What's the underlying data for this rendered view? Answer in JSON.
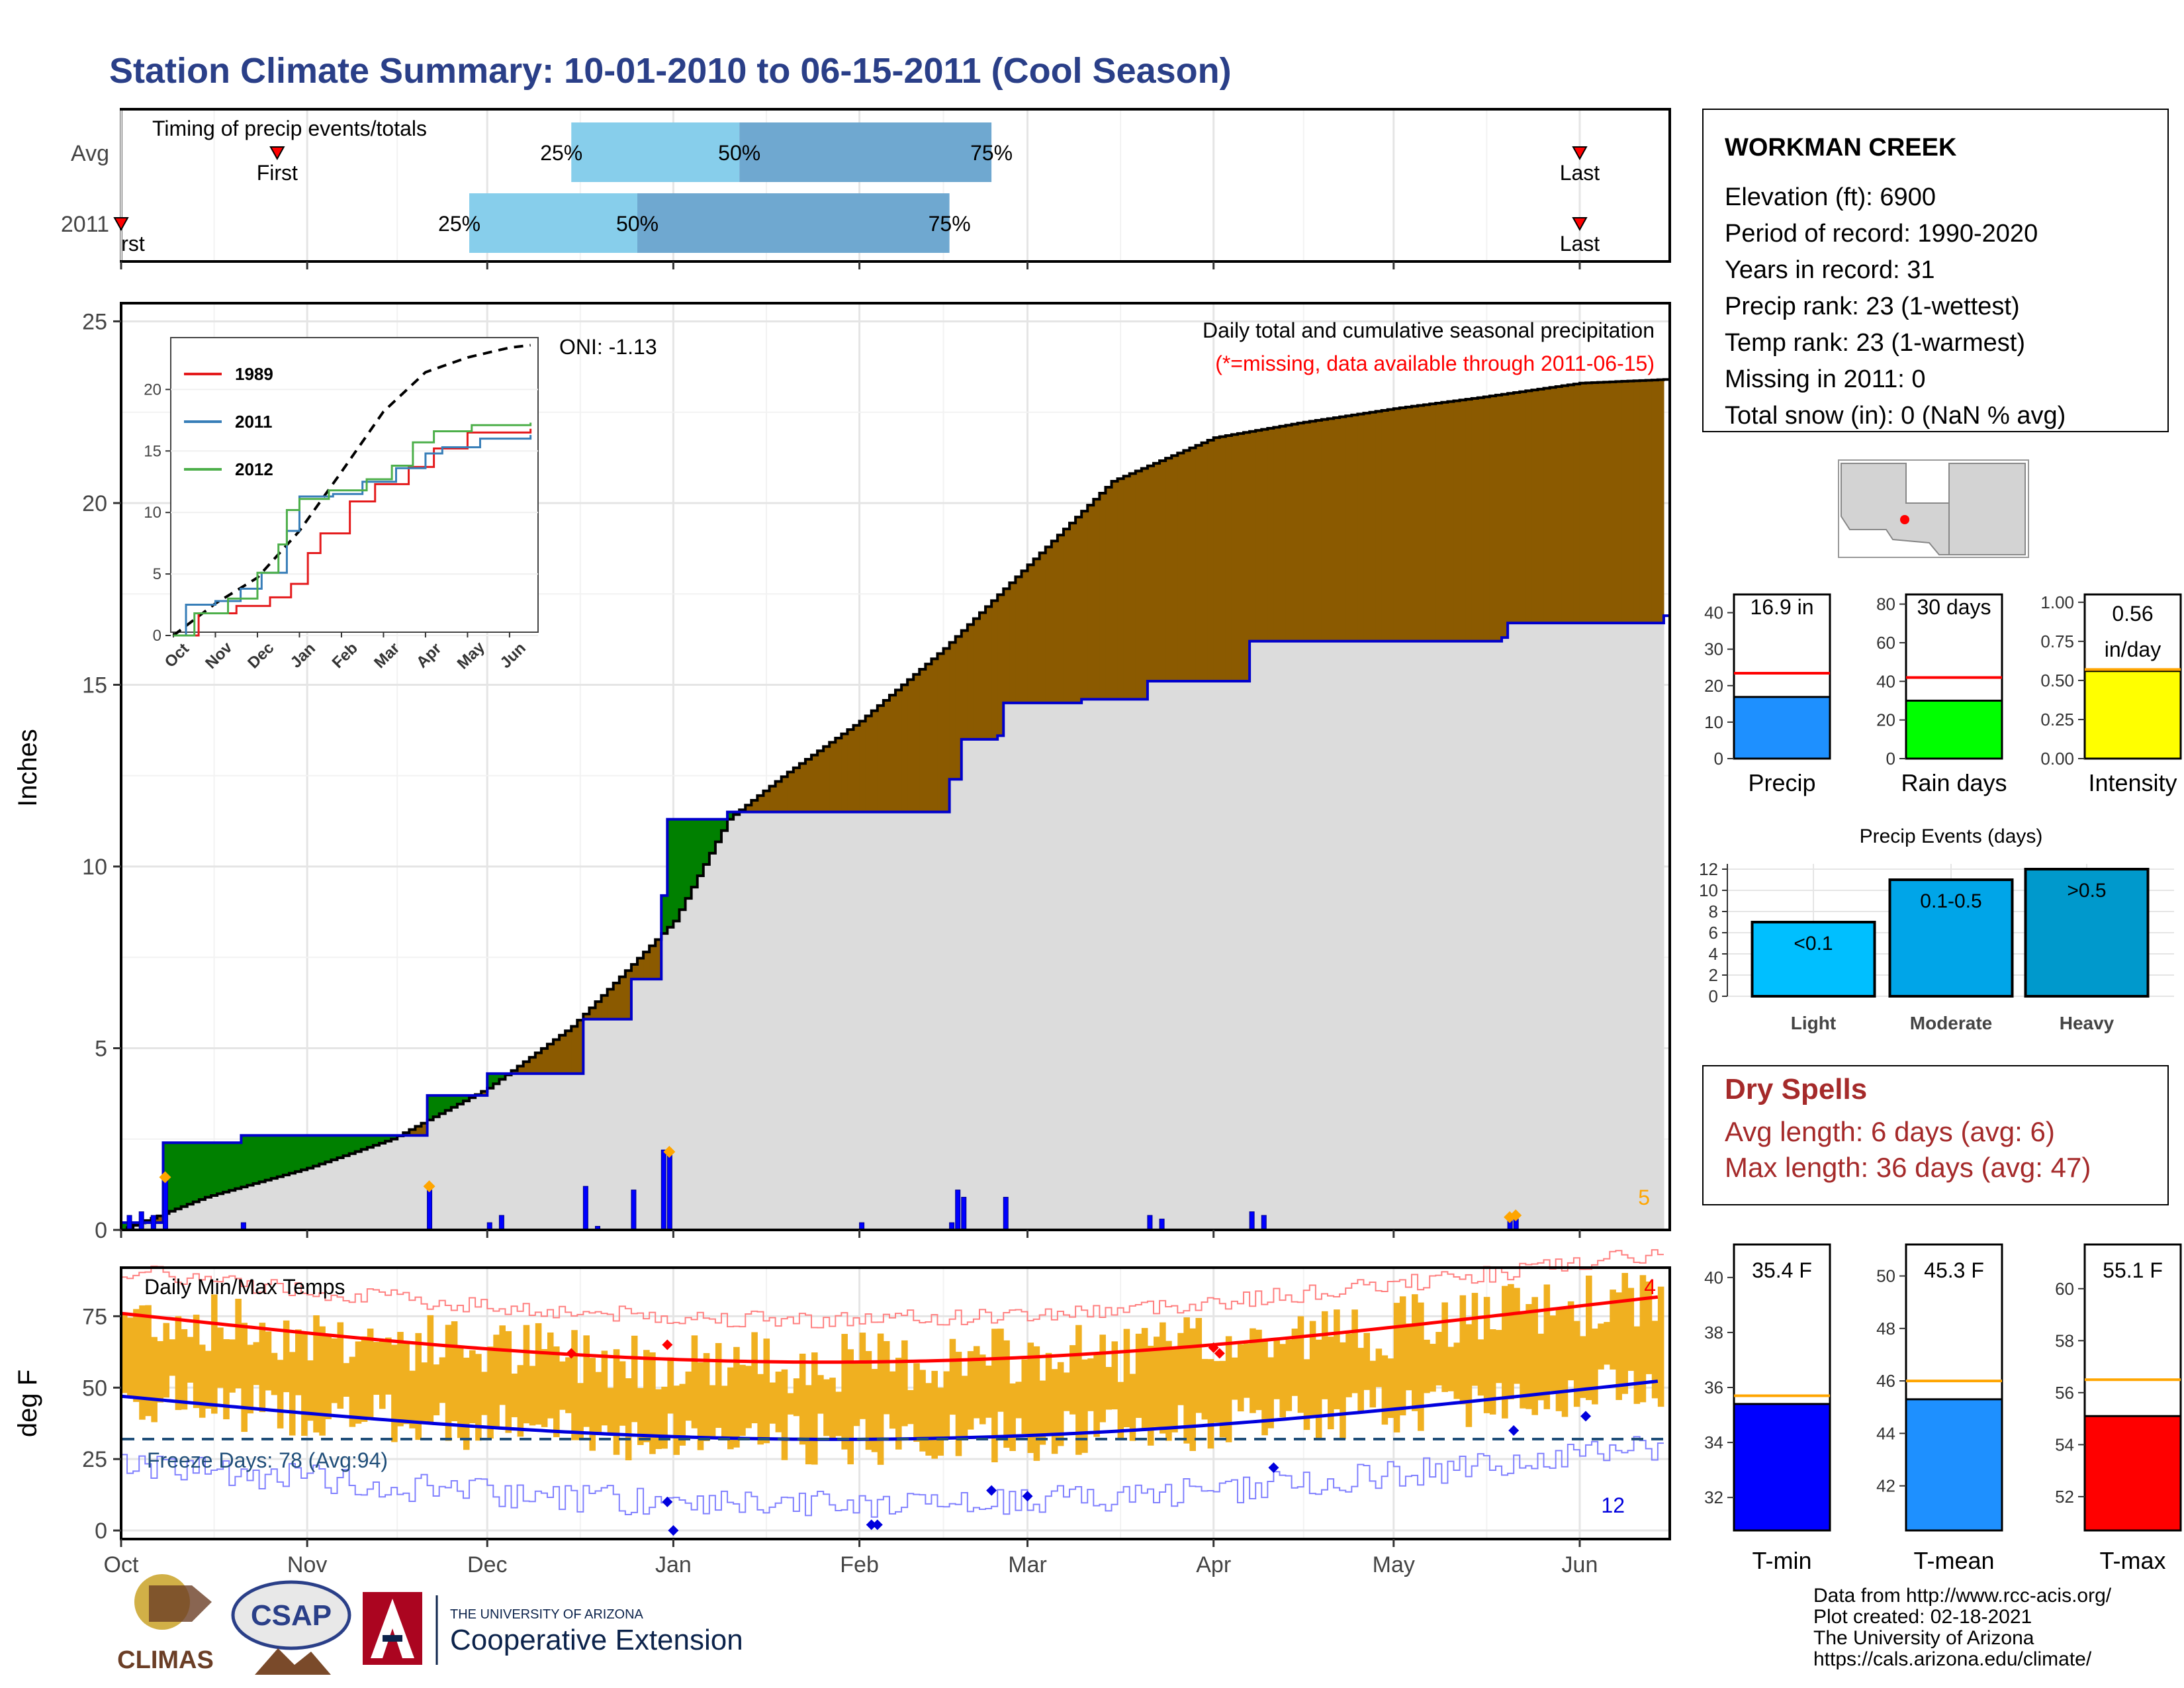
{
  "title": "Station Climate Summary: 10-01-2010 to 06-15-2011 (Cool Season)",
  "colors": {
    "title": "#2a3f88",
    "precip_above": "#8b5a00",
    "precip_below": "#008000",
    "cum_fill": "#dcdcdc",
    "year_line": "#0000cc",
    "bars": "#0000ff",
    "temp_bar": "#f0b020",
    "tmax_avg": "#ff0000",
    "tmin_avg": "#0000dd",
    "orange": "#ffa500"
  },
  "timing": {
    "label": "Timing of precip events/totals",
    "rows": [
      {
        "label": "Avg",
        "first": "2010-10-27",
        "last": "2011-06-01",
        "q25": "2010-12-15",
        "q50": "2011-01-12",
        "q75": "2011-02-23"
      },
      {
        "label": "2011",
        "first": "2010-10-01",
        "last": "2011-06-01",
        "q25": "2010-11-28",
        "q50": "2010-12-26",
        "q75": "2011-02-16"
      }
    ],
    "first_label": "First",
    "first_label_cut": "rst",
    "last_label": "Last",
    "q_labels": [
      "25%",
      "50%",
      "75%"
    ]
  },
  "precip": {
    "ylabel": "Inches",
    "subtitle": "Daily total and cumulative seasonal precipitation",
    "missing_note": "(*=missing, data available through 2011-06-15)",
    "oni": "ONI: -1.13",
    "corner_count": "5",
    "y_ticks": [
      "0",
      "5",
      "10",
      "15",
      "20",
      "25"
    ],
    "x_ticks": [
      "Oct",
      "Nov",
      "Dec",
      "Jan",
      "Feb",
      "Mar",
      "Apr",
      "May",
      "Jun"
    ]
  },
  "inset": {
    "series": [
      {
        "name": "1989",
        "color": "#e41a1c"
      },
      {
        "name": "2011",
        "color": "#377eb8"
      },
      {
        "name": "2012",
        "color": "#4daf4a"
      }
    ],
    "y_ticks": [
      "0",
      "5",
      "10",
      "15",
      "20"
    ],
    "x_ticks": [
      "Oct",
      "Nov",
      "Dec",
      "Jan",
      "Feb",
      "Mar",
      "Apr",
      "May",
      "Jun"
    ]
  },
  "temps": {
    "label": "Daily Min/Max Temps",
    "ylabel": "deg F",
    "freeze": "Freeze Days: 78 (Avg:94)",
    "hot_count": "4",
    "cold_count": "12",
    "y_ticks": [
      "0",
      "25",
      "50",
      "75"
    ],
    "x_ticks": [
      "Oct",
      "Nov",
      "Dec",
      "Jan",
      "Feb",
      "Mar",
      "Apr",
      "May",
      "Jun"
    ]
  },
  "station": {
    "name": "WORKMAN CREEK",
    "lines": [
      "Elevation (ft): 6900",
      "Period of record: 1990-2020",
      "Years in record: 31",
      "Precip rank: 23 (1-wettest)",
      "Temp rank: 23 (1-warmest)",
      "Missing in 2011: 0",
      "Total snow (in): 0 (NaN % avg)"
    ]
  },
  "mini_bars": [
    {
      "label": "Precip",
      "value_text": "16.9 in",
      "value": 16.9,
      "avg": 23.4,
      "ymax": 45,
      "ticks": [
        "0",
        "10",
        "20",
        "30",
        "40"
      ],
      "color": "#1e90ff"
    },
    {
      "label": "Rain days",
      "value_text": "30 days",
      "value": 30,
      "avg": 42,
      "ymax": 85,
      "ticks": [
        "0",
        "20",
        "40",
        "60",
        "80"
      ],
      "color": "#00ff00"
    },
    {
      "label": "Intensity",
      "value_text": "0.56",
      "value_text2": "in/day",
      "value": 0.56,
      "avg": 0.57,
      "ymax": 1.05,
      "ticks": [
        "0.00",
        "0.25",
        "0.50",
        "0.75",
        "1.00"
      ],
      "color": "#ffff00"
    }
  ],
  "events": {
    "title": "Precip Events (days)",
    "ticks": [
      "0",
      "2",
      "4",
      "6",
      "8",
      "10",
      "12"
    ],
    "bars": [
      {
        "cat": "Light",
        "label": "<0.1",
        "value": 7,
        "color": "#00bfff"
      },
      {
        "cat": "Moderate",
        "label": "0.1-0.5",
        "value": 11,
        "color": "#00a5e8"
      },
      {
        "cat": "Heavy",
        "label": ">0.5",
        "value": 12,
        "color": "#0099cc"
      }
    ]
  },
  "dry": {
    "title": "Dry Spells",
    "lines": [
      "Avg length: 6 days (avg: 6)",
      "Max length: 36 days (avg: 47)"
    ]
  },
  "temp_bars": [
    {
      "label": "T-min",
      "value_text": "35.4 F",
      "value": 35.4,
      "avg": 35.7,
      "ymin": 30.8,
      "ymax": 41.2,
      "ticks": [
        "32",
        "34",
        "36",
        "38",
        "40"
      ],
      "color": "#0000ff"
    },
    {
      "label": "T-mean",
      "value_text": "45.3 F",
      "value": 45.3,
      "avg": 46.0,
      "ymin": 40.3,
      "ymax": 51.2,
      "ticks": [
        "42",
        "44",
        "46",
        "48",
        "50"
      ],
      "color": "#1e90ff"
    },
    {
      "label": "T-max",
      "value_text": "55.1 F",
      "value": 55.1,
      "avg": 56.5,
      "ymin": 50.7,
      "ymax": 61.7,
      "ticks": [
        "52",
        "54",
        "56",
        "58",
        "60"
      ],
      "color": "#ff0000"
    }
  ],
  "footer": {
    "lines": [
      "Data from http://www.rcc-acis.org/",
      "Plot created: 02-18-2021",
      "The University of Arizona",
      "https://cals.arizona.edu/climate/"
    ],
    "climas": "CLIMAS",
    "csap": "CSAP",
    "ua_small": "THE UNIVERSITY OF ARIZONA",
    "ua_big": "Cooperative Extension"
  },
  "chart_data": {
    "type": "area",
    "title": "Daily total and cumulative seasonal precipitation",
    "ylabel": "Inches",
    "ylim": [
      0,
      25.5
    ],
    "cumulative_2011": [
      {
        "date": "2010-10-01",
        "value": 0.2
      },
      {
        "date": "2010-10-08",
        "value": 2.4
      },
      {
        "date": "2010-10-20",
        "value": 2.4
      },
      {
        "date": "2010-10-21",
        "value": 2.6
      },
      {
        "date": "2010-11-20",
        "value": 2.6
      },
      {
        "date": "2010-11-21",
        "value": 3.7
      },
      {
        "date": "2010-11-30",
        "value": 3.7
      },
      {
        "date": "2010-12-01",
        "value": 4.3
      },
      {
        "date": "2010-12-16",
        "value": 4.3
      },
      {
        "date": "2010-12-17",
        "value": 5.8
      },
      {
        "date": "2010-12-24",
        "value": 5.8
      },
      {
        "date": "2010-12-25",
        "value": 6.9
      },
      {
        "date": "2010-12-29",
        "value": 6.9
      },
      {
        "date": "2010-12-30",
        "value": 9.2
      },
      {
        "date": "2010-12-31",
        "value": 11.3
      },
      {
        "date": "2011-01-10",
        "value": 11.5
      },
      {
        "date": "2011-02-04",
        "value": 11.5
      },
      {
        "date": "2011-02-15",
        "value": 11.5
      },
      {
        "date": "2011-02-16",
        "value": 12.4
      },
      {
        "date": "2011-02-18",
        "value": 13.5
      },
      {
        "date": "2011-02-24",
        "value": 13.6
      },
      {
        "date": "2011-02-25",
        "value": 14.5
      },
      {
        "date": "2011-03-10",
        "value": 14.6
      },
      {
        "date": "2011-03-20",
        "value": 14.6
      },
      {
        "date": "2011-03-21",
        "value": 15.1
      },
      {
        "date": "2011-04-06",
        "value": 15.1
      },
      {
        "date": "2011-04-07",
        "value": 16.2
      },
      {
        "date": "2011-05-19",
        "value": 16.3
      },
      {
        "date": "2011-05-20",
        "value": 16.7
      },
      {
        "date": "2011-06-15",
        "value": 16.9
      }
    ],
    "cumulative_avg": [
      {
        "date": "2010-10-01",
        "value": 0.0
      },
      {
        "date": "2010-10-15",
        "value": 0.9
      },
      {
        "date": "2010-11-01",
        "value": 1.7
      },
      {
        "date": "2010-11-15",
        "value": 2.5
      },
      {
        "date": "2010-12-01",
        "value": 3.9
      },
      {
        "date": "2010-12-15",
        "value": 5.6
      },
      {
        "date": "2011-01-01",
        "value": 8.5
      },
      {
        "date": "2011-01-10",
        "value": 11.3
      },
      {
        "date": "2011-01-20",
        "value": 12.6
      },
      {
        "date": "2011-02-01",
        "value": 14.0
      },
      {
        "date": "2011-02-15",
        "value": 16.0
      },
      {
        "date": "2011-03-01",
        "value": 18.3
      },
      {
        "date": "2011-03-15",
        "value": 20.6
      },
      {
        "date": "2011-04-01",
        "value": 21.8
      },
      {
        "date": "2011-04-15",
        "value": 22.2
      },
      {
        "date": "2011-05-01",
        "value": 22.6
      },
      {
        "date": "2011-05-15",
        "value": 22.9
      },
      {
        "date": "2011-06-01",
        "value": 23.3
      },
      {
        "date": "2011-06-15",
        "value": 23.4
      }
    ],
    "daily_precip": [
      {
        "date": "2010-10-02",
        "value": 0.4
      },
      {
        "date": "2010-10-04",
        "value": 0.5
      },
      {
        "date": "2010-10-06",
        "value": 0.4
      },
      {
        "date": "2010-10-08",
        "value": 1.4
      },
      {
        "date": "2010-10-21",
        "value": 0.2
      },
      {
        "date": "2010-11-21",
        "value": 1.1
      },
      {
        "date": "2010-12-01",
        "value": 0.2
      },
      {
        "date": "2010-12-03",
        "value": 0.4
      },
      {
        "date": "2010-12-17",
        "value": 1.2
      },
      {
        "date": "2010-12-19",
        "value": 0.1
      },
      {
        "date": "2010-12-25",
        "value": 1.1
      },
      {
        "date": "2010-12-30",
        "value": 2.2
      },
      {
        "date": "2010-12-31",
        "value": 2.1
      },
      {
        "date": "2011-02-01",
        "value": 0.2
      },
      {
        "date": "2011-02-16",
        "value": 0.2
      },
      {
        "date": "2011-02-17",
        "value": 1.1
      },
      {
        "date": "2011-02-18",
        "value": 0.9
      },
      {
        "date": "2011-02-25",
        "value": 0.9
      },
      {
        "date": "2011-03-21",
        "value": 0.4
      },
      {
        "date": "2011-03-23",
        "value": 0.3
      },
      {
        "date": "2011-04-07",
        "value": 0.5
      },
      {
        "date": "2011-04-09",
        "value": 0.4
      },
      {
        "date": "2011-05-20",
        "value": 0.3
      },
      {
        "date": "2011-05-21",
        "value": 0.3
      }
    ],
    "inset": {
      "ylim": [
        0,
        24
      ],
      "avg": [
        [
          0,
          0
        ],
        [
          1,
          2.6
        ],
        [
          2,
          4.7
        ],
        [
          3,
          8.5
        ],
        [
          4,
          13.3
        ],
        [
          5,
          18.2
        ],
        [
          6,
          21.4
        ],
        [
          7,
          22.6
        ],
        [
          8,
          23.4
        ],
        [
          8.5,
          23.6
        ]
      ],
      "series": [
        {
          "name": "1989",
          "points": [
            [
              0,
              0
            ],
            [
              0.6,
              1.8
            ],
            [
              1.5,
              2.4
            ],
            [
              2.3,
              3.1
            ],
            [
              2.8,
              4.2
            ],
            [
              3.2,
              6.7
            ],
            [
              3.5,
              8.3
            ],
            [
              4.2,
              10.9
            ],
            [
              4.8,
              12.3
            ],
            [
              5.6,
              13.7
            ],
            [
              6.2,
              15.2
            ],
            [
              7.0,
              16.5
            ],
            [
              8.5,
              16.8
            ]
          ]
        },
        {
          "name": "2011",
          "points": [
            [
              0,
              0
            ],
            [
              0.3,
              2.5
            ],
            [
              1,
              2.8
            ],
            [
              1.6,
              3.8
            ],
            [
              2.1,
              5.1
            ],
            [
              2.7,
              8.5
            ],
            [
              3.0,
              11.3
            ],
            [
              3.8,
              11.5
            ],
            [
              4.5,
              12.5
            ],
            [
              5.3,
              13.6
            ],
            [
              6.0,
              14.8
            ],
            [
              6.4,
              15.3
            ],
            [
              7.3,
              16.0
            ],
            [
              8.5,
              16.3
            ]
          ]
        },
        {
          "name": "2012",
          "points": [
            [
              0,
              0
            ],
            [
              0.5,
              1.8
            ],
            [
              1.3,
              3.0
            ],
            [
              2.0,
              5.1
            ],
            [
              2.5,
              7.4
            ],
            [
              2.7,
              10.2
            ],
            [
              3.0,
              11.1
            ],
            [
              3.7,
              11.8
            ],
            [
              4.6,
              12.7
            ],
            [
              5.2,
              13.8
            ],
            [
              5.7,
              15.7
            ],
            [
              6.2,
              16.6
            ],
            [
              7.1,
              17.1
            ],
            [
              8.5,
              17.3
            ]
          ]
        }
      ]
    },
    "temperature": {
      "ylim": [
        -3,
        92
      ],
      "tmax_avg_start": 76,
      "tmax_avg_end": 78,
      "tmin_avg_start": 47,
      "tmin_avg_end": 51,
      "freeze_line": 32
    }
  }
}
